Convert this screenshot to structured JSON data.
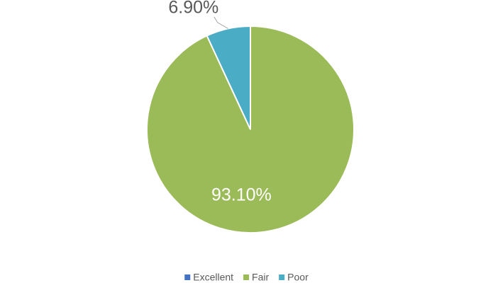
{
  "chart_data": {
    "type": "pie",
    "categories": [
      "Excellent",
      "Fair",
      "Poor"
    ],
    "values": [
      0,
      93.1,
      6.9
    ],
    "value_labels": [
      null,
      "93.10%",
      "6.90%"
    ],
    "colors": [
      "#4472c4",
      "#9bbb59",
      "#4bacc6"
    ],
    "legend": "bottom"
  }
}
